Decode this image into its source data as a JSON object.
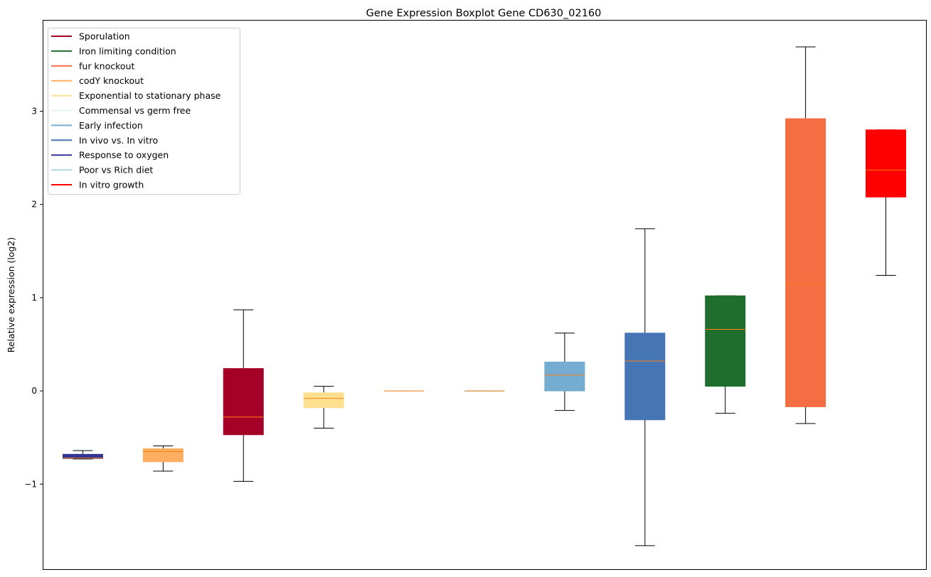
{
  "chart_data": {
    "type": "box",
    "title": "Gene Expression Boxplot Gene CD630_02160",
    "xlabel": "",
    "ylabel": "Relative expression (log2)",
    "ylim": [
      -1.92,
      3.98
    ],
    "yticks": [
      -1,
      0,
      1,
      2,
      3
    ],
    "ytick_labels": [
      "−1",
      "0",
      "1",
      "2",
      "3"
    ],
    "grid": false,
    "legend_position": "top-left",
    "legend": [
      {
        "label": "Sporulation",
        "color": "#a50026"
      },
      {
        "label": "Iron limiting condition",
        "color": "#1f6e2e"
      },
      {
        "label": "fur knockout",
        "color": "#f46d43"
      },
      {
        "label": "codY knockout",
        "color": "#fdae61"
      },
      {
        "label": "Exponential to stationary phase",
        "color": "#fee090"
      },
      {
        "label": "Commensal vs germ free",
        "color": "#e0f3f8"
      },
      {
        "label": "Early infection",
        "color": "#74add1"
      },
      {
        "label": "In vivo vs. In vitro",
        "color": "#4575b4"
      },
      {
        "label": "Response to oxygen",
        "color": "#313695"
      },
      {
        "label": "Poor vs Rich diet",
        "color": "#abd9e9"
      },
      {
        "label": "In vitro growth",
        "color": "#ff0000"
      }
    ],
    "median_color": "#ff7f0e",
    "boxes": [
      {
        "name": "Response to oxygen",
        "color": "#313695",
        "low": -0.73,
        "q1": -0.725,
        "median": -0.72,
        "q3": -0.68,
        "high": -0.64
      },
      {
        "name": "codY knockout",
        "color": "#fdae61",
        "low": -0.86,
        "q1": -0.76,
        "median": -0.65,
        "q3": -0.62,
        "high": -0.59
      },
      {
        "name": "Sporulation",
        "color": "#a50026",
        "low": -0.97,
        "q1": -0.47,
        "median": -0.28,
        "q3": 0.24,
        "high": 0.87
      },
      {
        "name": "Exponential to stationary phase",
        "color": "#fee090",
        "low": -0.4,
        "q1": -0.18,
        "median": -0.08,
        "q3": -0.02,
        "high": 0.05
      },
      {
        "name": "Commensal vs germ free",
        "color": "#e0f3f8",
        "low": 0,
        "q1": 0,
        "median": 0,
        "q3": 0,
        "high": 0
      },
      {
        "name": "Poor vs Rich diet",
        "color": "#abd9e9",
        "low": 0,
        "q1": 0,
        "median": 0,
        "q3": 0,
        "high": 0
      },
      {
        "name": "Early infection",
        "color": "#74add1",
        "low": -0.21,
        "q1": 0.0,
        "median": 0.17,
        "q3": 0.31,
        "high": 0.62
      },
      {
        "name": "In vivo vs. In vitro",
        "color": "#4575b4",
        "low": -1.66,
        "q1": -0.31,
        "median": 0.32,
        "q3": 0.62,
        "high": 1.74
      },
      {
        "name": "Iron limiting condition",
        "color": "#1f6e2e",
        "low": -0.24,
        "q1": 0.05,
        "median": 0.66,
        "q3": 1.02,
        "high": 1.02
      },
      {
        "name": "fur knockout",
        "color": "#f46d43",
        "low": -0.35,
        "q1": -0.17,
        "median": 1.15,
        "q3": 2.92,
        "high": 3.69
      },
      {
        "name": "In vitro growth",
        "color": "#ff0000",
        "low": 1.24,
        "q1": 2.08,
        "median": 2.37,
        "q3": 2.8,
        "high": 2.8
      }
    ]
  }
}
